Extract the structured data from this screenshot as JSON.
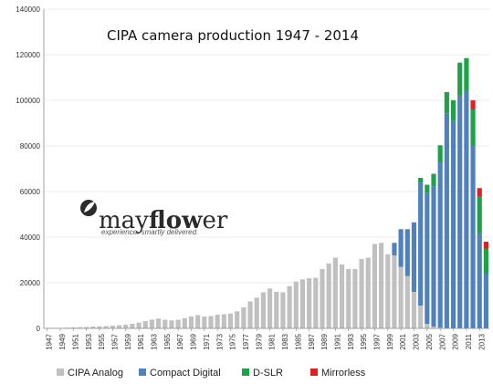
{
  "chart_data": {
    "type": "bar",
    "stacked": true,
    "title": "CIPA  camera production 1947 - 2014",
    "xlabel": "",
    "ylabel": "",
    "ylim": [
      0,
      140000
    ],
    "yticks": [
      0,
      20000,
      40000,
      60000,
      80000,
      100000,
      120000,
      140000
    ],
    "ytick_labels": [
      "0",
      "20000",
      "40000",
      "60000",
      "80000",
      "100000",
      "120000",
      "140000"
    ],
    "grid": true,
    "legend_position": "bottom",
    "categories": [
      "1947",
      "1948",
      "1949",
      "1950",
      "1951",
      "1952",
      "1953",
      "1954",
      "1955",
      "1956",
      "1957",
      "1958",
      "1959",
      "1960",
      "1961",
      "1962",
      "1963",
      "1964",
      "1965",
      "1966",
      "1967",
      "1968",
      "1969",
      "1970",
      "1971",
      "1972",
      "1973",
      "1974",
      "1975",
      "1976",
      "1977",
      "1978",
      "1979",
      "1980",
      "1981",
      "1982",
      "1983",
      "1984",
      "1985",
      "1986",
      "1987",
      "1988",
      "1989",
      "1990",
      "1991",
      "1992",
      "1993",
      "1994",
      "1995",
      "1996",
      "1997",
      "1998",
      "1999",
      "2000",
      "2001",
      "2002",
      "2003",
      "2004",
      "2005",
      "2006",
      "2007",
      "2008",
      "2009",
      "2010",
      "2011",
      "2012",
      "2013",
      "2014"
    ],
    "xtick_labels": [
      "1947",
      "1949",
      "1951",
      "1953",
      "1955",
      "1957",
      "1959",
      "1961",
      "1963",
      "1965",
      "1967",
      "1969",
      "1971",
      "1973",
      "1975",
      "1977",
      "1979",
      "1981",
      "1983",
      "1985",
      "1987",
      "1989",
      "1991",
      "1993",
      "1995",
      "1997",
      "1999",
      "2001",
      "2003",
      "2005",
      "2007",
      "2009",
      "2011",
      "2013"
    ],
    "series": [
      {
        "name": "CIPA Analog",
        "color": "#c0c0c0",
        "values": [
          100,
          150,
          200,
          300,
          400,
          500,
          600,
          800,
          900,
          1000,
          1200,
          1400,
          1600,
          2000,
          2500,
          3200,
          3800,
          4300,
          3800,
          3500,
          3800,
          4500,
          5200,
          5800,
          5200,
          5400,
          6000,
          6200,
          6500,
          7500,
          9200,
          11800,
          13500,
          15800,
          17500,
          16000,
          15800,
          18500,
          20500,
          21500,
          22000,
          22200,
          26000,
          28500,
          31000,
          28000,
          26000,
          26000,
          30500,
          31000,
          37000,
          37500,
          32500,
          32000,
          27000,
          23000,
          16000,
          10000,
          2000,
          800,
          300,
          100,
          50,
          30,
          20,
          10,
          0,
          0
        ]
      },
      {
        "name": "Compact Digital",
        "color": "#4f81bd",
        "values": [
          0,
          0,
          0,
          0,
          0,
          0,
          0,
          0,
          0,
          0,
          0,
          0,
          0,
          0,
          0,
          0,
          0,
          0,
          0,
          0,
          0,
          0,
          0,
          0,
          0,
          0,
          0,
          0,
          0,
          0,
          0,
          0,
          0,
          0,
          0,
          0,
          0,
          0,
          0,
          0,
          0,
          0,
          0,
          0,
          0,
          0,
          0,
          0,
          0,
          0,
          0,
          0,
          0,
          5500,
          16500,
          20500,
          30500,
          54000,
          57500,
          61500,
          72500,
          94000,
          91000,
          102000,
          104000,
          80000,
          42000,
          24000
        ]
      },
      {
        "name": "D-SLR",
        "color": "#1fa14a",
        "values": [
          0,
          0,
          0,
          0,
          0,
          0,
          0,
          0,
          0,
          0,
          0,
          0,
          0,
          0,
          0,
          0,
          0,
          0,
          0,
          0,
          0,
          0,
          0,
          0,
          0,
          0,
          0,
          0,
          0,
          0,
          0,
          0,
          0,
          0,
          0,
          0,
          0,
          0,
          0,
          0,
          0,
          0,
          0,
          0,
          0,
          0,
          0,
          0,
          0,
          0,
          0,
          0,
          0,
          0,
          0,
          0,
          0,
          2000,
          3500,
          5500,
          7500,
          9500,
          9000,
          14500,
          14500,
          16000,
          16000,
          11000
        ]
      },
      {
        "name": "Mirrorless",
        "color": "#e02020",
        "values": [
          0,
          0,
          0,
          0,
          0,
          0,
          0,
          0,
          0,
          0,
          0,
          0,
          0,
          0,
          0,
          0,
          0,
          0,
          0,
          0,
          0,
          0,
          0,
          0,
          0,
          0,
          0,
          0,
          0,
          0,
          0,
          0,
          0,
          0,
          0,
          0,
          0,
          0,
          0,
          0,
          0,
          0,
          0,
          0,
          0,
          0,
          0,
          0,
          0,
          0,
          0,
          0,
          0,
          0,
          0,
          0,
          0,
          0,
          0,
          0,
          0,
          0,
          0,
          0,
          0,
          4000,
          3500,
          3000
        ]
      }
    ]
  },
  "logo": {
    "brand_light": "may",
    "brand_bold": "flow",
    "brand_tail": "er",
    "tagline": "experience. smartly delivered.",
    "color": "#2a2a2a",
    "icon": "leaf-circle-icon"
  }
}
